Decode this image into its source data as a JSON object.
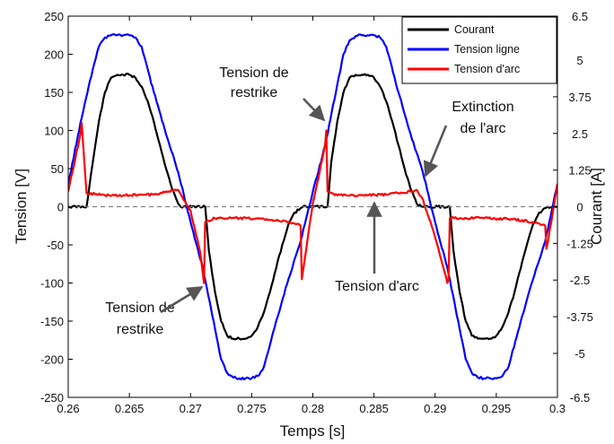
{
  "chart_data": {
    "type": "line",
    "xlabel": "Temps [s]",
    "ylabel": "Tension [V]",
    "y2label": "Courant [A]",
    "xlim": [
      0.26,
      0.3
    ],
    "ylim": [
      -250,
      250
    ],
    "y2lim": [
      -6.5,
      6.5
    ],
    "xticks": [
      "0.26",
      "0.265",
      "0.27",
      "0.275",
      "0.28",
      "0.285",
      "0.29",
      "0.295",
      "0.3"
    ],
    "yticks": [
      "250",
      "200",
      "150",
      "100",
      "50",
      "0",
      "-50",
      "-100",
      "-150",
      "-200",
      "-250"
    ],
    "y2ticks": [
      "6.5",
      "5",
      "3.75",
      "2.5",
      "1.25",
      "0",
      "-1.25",
      "-2.5",
      "-3.75",
      "-5",
      "-6.5"
    ],
    "grid": false,
    "legend_position": "top-right",
    "series": [
      {
        "name": "Courant",
        "color": "#000000",
        "axis": "right",
        "x": [
          0.26,
          0.2615,
          0.262,
          0.2625,
          0.263,
          0.2635,
          0.264,
          0.2645,
          0.265,
          0.2655,
          0.266,
          0.2665,
          0.267,
          0.2675,
          0.268,
          0.2685,
          0.269,
          0.2692,
          0.2712,
          0.2715,
          0.272,
          0.2725,
          0.273,
          0.2735,
          0.274,
          0.2745,
          0.275,
          0.2755,
          0.276,
          0.2765,
          0.277,
          0.2775,
          0.278,
          0.2785,
          0.279,
          0.2792,
          0.2812,
          0.2815,
          0.282,
          0.2825,
          0.283,
          0.2835,
          0.284,
          0.2845,
          0.285,
          0.2855,
          0.286,
          0.2865,
          0.287,
          0.2875,
          0.288,
          0.2885,
          0.289,
          0.2892,
          0.2912,
          0.2915,
          0.292,
          0.2925,
          0.293,
          0.2935,
          0.294,
          0.2945,
          0.295,
          0.2955,
          0.296,
          0.2965,
          0.297,
          0.2975,
          0.298,
          0.2985,
          0.299,
          0.2992,
          0.3
        ],
        "values": [
          0,
          0,
          1.5,
          2.9,
          3.9,
          4.4,
          4.5,
          4.5,
          4.5,
          4.4,
          4.1,
          3.6,
          2.9,
          2.1,
          1.3,
          0.6,
          0.1,
          0,
          0,
          -1.5,
          -2.9,
          -3.9,
          -4.4,
          -4.5,
          -4.5,
          -4.5,
          -4.4,
          -4.1,
          -3.6,
          -2.9,
          -2.1,
          -1.3,
          -0.6,
          -0.2,
          -0.05,
          0,
          0,
          1.5,
          2.9,
          3.9,
          4.4,
          4.5,
          4.5,
          4.5,
          4.4,
          4.1,
          3.6,
          2.9,
          2.1,
          1.3,
          0.6,
          0.1,
          0,
          0,
          0,
          -1.5,
          -2.9,
          -3.9,
          -4.4,
          -4.5,
          -4.5,
          -4.5,
          -4.4,
          -4.1,
          -3.6,
          -2.9,
          -2.1,
          -1.3,
          -0.6,
          -0.2,
          -0.05,
          0,
          0
        ]
      },
      {
        "name": "Tension ligne",
        "color": "#0000ff",
        "axis": "left",
        "x": [
          0.26,
          0.261,
          0.262,
          0.2625,
          0.263,
          0.2635,
          0.264,
          0.2645,
          0.265,
          0.2655,
          0.266,
          0.267,
          0.268,
          0.269,
          0.27,
          0.271,
          0.272,
          0.2725,
          0.273,
          0.2735,
          0.274,
          0.2745,
          0.275,
          0.2755,
          0.276,
          0.277,
          0.278,
          0.279,
          0.28,
          0.281,
          0.282,
          0.2825,
          0.283,
          0.2835,
          0.284,
          0.2845,
          0.285,
          0.2855,
          0.286,
          0.287,
          0.288,
          0.289,
          0.29,
          0.291,
          0.292,
          0.2925,
          0.293,
          0.2935,
          0.294,
          0.2945,
          0.295,
          0.2955,
          0.296,
          0.297,
          0.298,
          0.299,
          0.3
        ],
        "values": [
          30,
          110,
          180,
          210,
          222,
          225,
          225,
          225,
          225,
          222,
          210,
          150,
          95,
          45,
          -20,
          -80,
          -160,
          -200,
          -218,
          -224,
          -225,
          -225,
          -225,
          -222,
          -210,
          -150,
          -95,
          -45,
          20,
          80,
          160,
          200,
          218,
          224,
          225,
          225,
          225,
          222,
          210,
          150,
          95,
          45,
          -20,
          -80,
          -160,
          -200,
          -218,
          -224,
          -225,
          -225,
          -225,
          -222,
          -210,
          -150,
          -95,
          -45,
          30
        ]
      },
      {
        "name": "Tension d'arc",
        "color": "#ff0000",
        "axis": "left",
        "x": [
          0.26,
          0.261,
          0.2611,
          0.2615,
          0.263,
          0.265,
          0.267,
          0.268,
          0.269,
          0.27,
          0.2708,
          0.2711,
          0.2712,
          0.272,
          0.274,
          0.276,
          0.278,
          0.2785,
          0.279,
          0.2791,
          0.28,
          0.281,
          0.2811,
          0.2812,
          0.282,
          0.284,
          0.286,
          0.288,
          0.2885,
          0.289,
          0.2895,
          0.29,
          0.2905,
          0.291,
          0.2911,
          0.2912,
          0.292,
          0.294,
          0.296,
          0.298,
          0.2985,
          0.299,
          0.2991,
          0.2995,
          0.3
        ],
        "values": [
          20,
          95,
          110,
          18,
          15,
          15,
          16,
          20,
          22,
          -5,
          -60,
          -100,
          -20,
          -15,
          -15,
          -16,
          -20,
          -22,
          -25,
          -95,
          5,
          80,
          100,
          20,
          15,
          15,
          16,
          20,
          22,
          10,
          -15,
          -40,
          -70,
          -100,
          -95,
          -15,
          -15,
          -15,
          -16,
          -20,
          -22,
          -25,
          -55,
          -20,
          30
        ]
      }
    ],
    "annotations": [
      {
        "lines": [
          "Tension de",
          "restrike"
        ]
      },
      {
        "lines": [
          "Tension de",
          "restrike"
        ]
      },
      {
        "lines": [
          "Extinction",
          "de l'arc"
        ]
      },
      {
        "lines": [
          "Tension d'arc"
        ]
      }
    ]
  }
}
